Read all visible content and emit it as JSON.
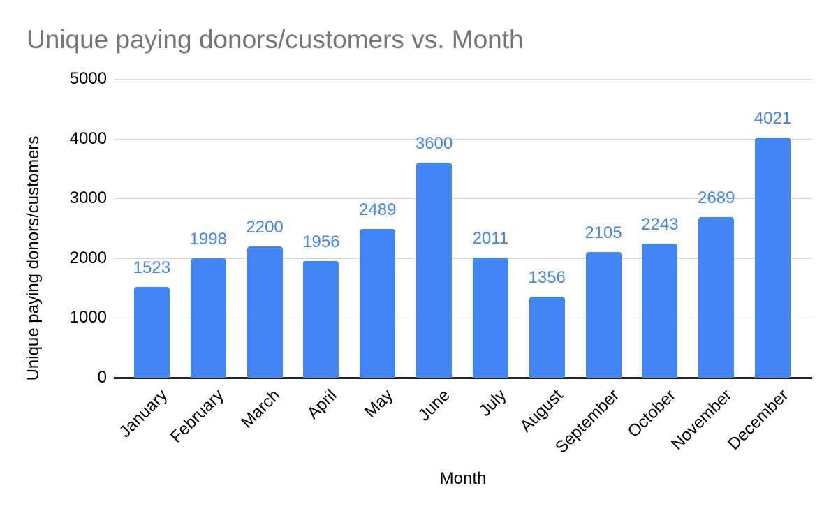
{
  "chart_data": {
    "type": "bar",
    "title": "Unique paying donors/customers vs. Month",
    "xlabel": "Month",
    "ylabel": "Unique paying donors/customers",
    "categories": [
      "January",
      "February",
      "March",
      "April",
      "May",
      "June",
      "July",
      "August",
      "September",
      "October",
      "November",
      "December"
    ],
    "values": [
      1523,
      1998,
      2200,
      1956,
      2489,
      3600,
      2011,
      1356,
      2105,
      2243,
      2689,
      4021
    ],
    "data_labels": [
      "1523",
      "1998",
      "2200",
      "1956",
      "2489",
      "3600",
      "2011",
      "1356",
      "2105",
      "2243",
      "2689",
      "4021"
    ],
    "ylim": [
      0,
      5000
    ],
    "yticks": [
      0,
      1000,
      2000,
      3000,
      4000,
      5000
    ],
    "grid": "horizontal",
    "legend": "none",
    "x_tick_rotation_deg": -45
  },
  "style": {
    "bar_color": "#4285f4",
    "data_label_color": "#4285f4",
    "title_color": "#757575",
    "axis_text_color": "#000000",
    "gridline_color": "#d9d9d9",
    "axis_line_color": "#212121",
    "background_color": "#ffffff"
  }
}
